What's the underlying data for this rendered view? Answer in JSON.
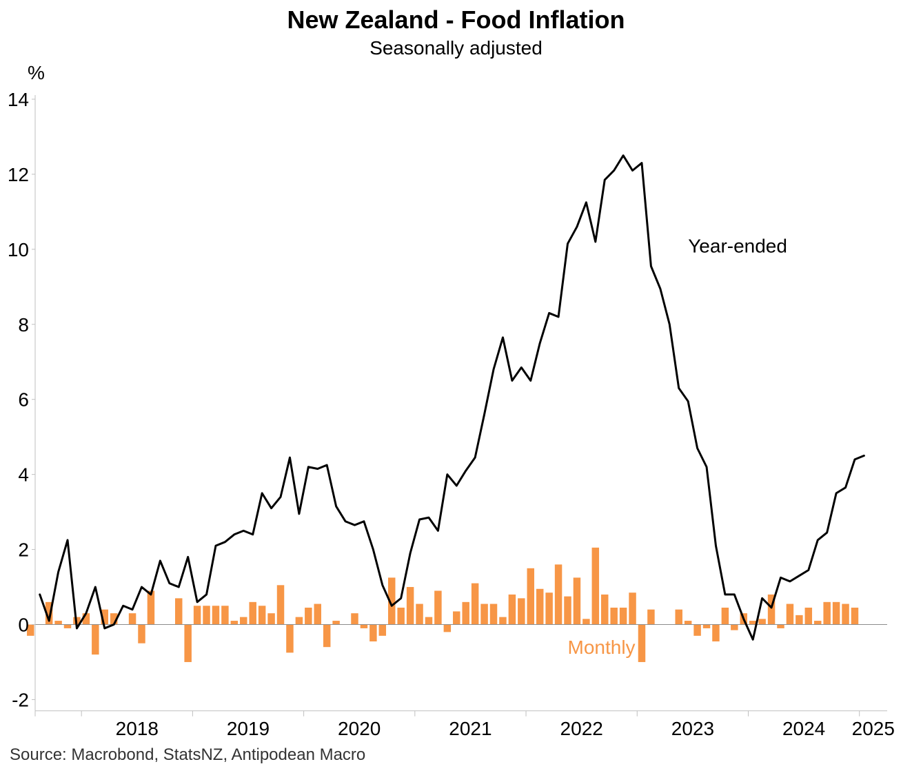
{
  "chart_data": {
    "type": "bar",
    "title": "New Zealand - Food Inflation",
    "subtitle": "Seasonally adjusted",
    "ylabel": "%",
    "source": "Source: Macrobond, StatsNZ, Antipodean Macro",
    "ylim": [
      -2.3,
      14
    ],
    "yticks": [
      -2,
      0,
      2,
      4,
      6,
      8,
      10,
      12,
      14
    ],
    "x_start": "2017-08",
    "x_end": "2025-03",
    "x_tick_labels": [
      "2018",
      "2019",
      "2020",
      "2021",
      "2022",
      "2023",
      "2024",
      "2025"
    ],
    "grid": false,
    "colors": {
      "monthly": "#F79646",
      "year_ended": "#000000",
      "axis": "#BFBFBF"
    },
    "series": [
      {
        "name": "Year-ended",
        "kind": "line",
        "start": "2017-08",
        "values": [
          0.8,
          0.1,
          1.4,
          2.25,
          -0.1,
          0.3,
          1.0,
          -0.1,
          0.0,
          0.5,
          0.4,
          1.0,
          0.8,
          1.7,
          1.1,
          1.0,
          1.8,
          0.6,
          0.8,
          2.1,
          2.2,
          2.4,
          2.5,
          2.4,
          3.5,
          3.1,
          3.4,
          4.45,
          2.95,
          4.2,
          4.15,
          4.25,
          3.15,
          2.75,
          2.65,
          2.75,
          2.0,
          1.05,
          0.5,
          0.7,
          1.9,
          2.8,
          2.85,
          2.5,
          4.0,
          3.7,
          4.1,
          4.45,
          5.6,
          6.8,
          7.65,
          6.5,
          6.85,
          6.5,
          7.5,
          8.3,
          8.2,
          10.15,
          10.6,
          11.25,
          10.2,
          11.85,
          12.1,
          12.5,
          12.1,
          12.3,
          9.55,
          8.95,
          8.0,
          6.3,
          5.95,
          4.7,
          4.2,
          2.1,
          0.8,
          0.8,
          0.15,
          -0.4,
          0.7,
          0.45,
          1.25,
          1.15,
          1.3,
          1.45,
          2.25,
          2.45,
          3.5,
          3.65,
          4.4,
          4.5
        ]
      },
      {
        "name": "Monthly",
        "kind": "bar",
        "start": "2017-07",
        "values": [
          -0.3,
          null,
          0.6,
          0.1,
          -0.1,
          0.2,
          0.3,
          -0.8,
          0.4,
          0.3,
          null,
          0.3,
          -0.5,
          0.9,
          null,
          null,
          0.7,
          -1.0,
          0.5,
          0.5,
          0.5,
          0.5,
          0.1,
          0.2,
          0.6,
          0.5,
          0.3,
          1.05,
          -0.75,
          0.2,
          0.45,
          0.55,
          -0.6,
          0.1,
          null,
          0.3,
          -0.1,
          -0.45,
          -0.3,
          1.25,
          0.45,
          1.0,
          0.55,
          0.2,
          0.9,
          -0.2,
          0.35,
          0.6,
          1.1,
          0.55,
          0.55,
          0.2,
          0.8,
          0.7,
          1.5,
          0.95,
          0.85,
          1.6,
          0.75,
          1.25,
          0.15,
          2.05,
          0.8,
          0.45,
          0.45,
          0.85,
          -1.0,
          0.4,
          null,
          null,
          0.4,
          0.1,
          -0.3,
          -0.1,
          -0.45,
          0.45,
          -0.15,
          0.3,
          0.1,
          0.15,
          0.8,
          -0.1,
          0.55,
          0.25,
          0.45,
          0.1,
          0.6,
          0.6,
          0.55,
          0.45
        ]
      }
    ],
    "annotations": [
      {
        "text": "Year-ended",
        "x": "2023-06",
        "y": 10.1,
        "color": "#000000"
      },
      {
        "text": "Monthly",
        "x": "2022-05",
        "y": -0.6,
        "color": "#F79646"
      }
    ]
  }
}
